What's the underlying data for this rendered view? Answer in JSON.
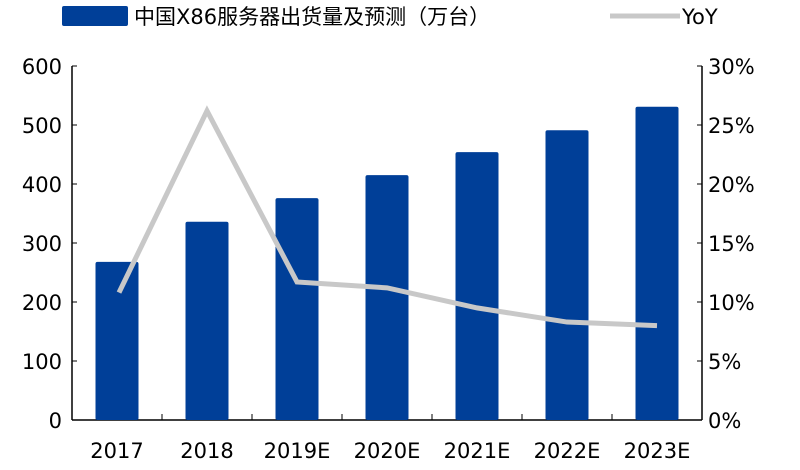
{
  "chart_data": {
    "type": "bar+line",
    "categories": [
      "2017",
      "2018",
      "2019E",
      "2020E",
      "2021E",
      "2022E",
      "2023E"
    ],
    "series": [
      {
        "name": "中国X86服务器出货量及预测（万台）",
        "type": "bar",
        "axis": "left",
        "color": "#003F98",
        "values": [
          268,
          336,
          376,
          415,
          454,
          491,
          531
        ]
      },
      {
        "name": "YoY",
        "type": "line",
        "axis": "right",
        "color": "#C8C8C8",
        "values": [
          10.8,
          26.2,
          11.7,
          11.2,
          9.5,
          8.3,
          8.0
        ]
      }
    ],
    "left_axis": {
      "ylim": [
        0,
        600
      ],
      "ticks": [
        "0",
        "100",
        "200",
        "300",
        "400",
        "500",
        "600"
      ]
    },
    "right_axis": {
      "ylim": [
        0,
        30
      ],
      "ticks": [
        "0%",
        "5%",
        "10%",
        "15%",
        "20%",
        "25%",
        "30%"
      ]
    },
    "grid": false,
    "legend_position": "top"
  }
}
